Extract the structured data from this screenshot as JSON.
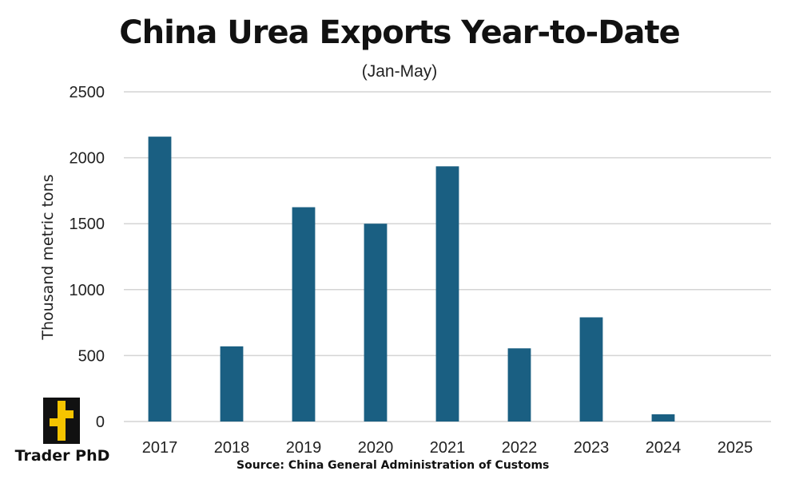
{
  "chart_data": {
    "type": "bar",
    "title": "China Urea Exports Year-to-Date",
    "subtitle": "(Jan-May)",
    "xlabel": "",
    "ylabel": "Thousand metric tons",
    "categories": [
      "2017",
      "2018",
      "2019",
      "2020",
      "2021",
      "2022",
      "2023",
      "2024",
      "2025"
    ],
    "values": [
      2160,
      570,
      1625,
      1500,
      1935,
      555,
      790,
      55,
      0
    ],
    "ylim": [
      0,
      2500
    ],
    "yticks": [
      "0",
      "500",
      "1000",
      "1500",
      "2000",
      "2500"
    ],
    "bar_color": "#1a5f82",
    "grid": true,
    "legend": "none"
  },
  "branding": {
    "logo_text": "Trader PhD",
    "logo_colors": [
      "#111111",
      "#f5c400"
    ]
  },
  "source": "Source: China General Administration of Customs"
}
